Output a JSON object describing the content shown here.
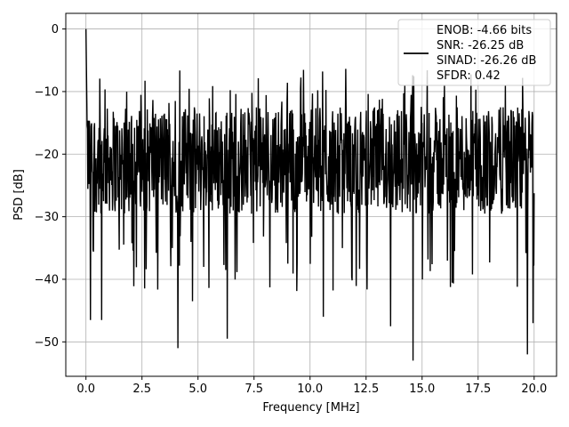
{
  "chart_data": {
    "type": "line",
    "xlabel": "Frequency [MHz]",
    "ylabel": "PSD [dB]",
    "xlim": [
      -0.9,
      21.0
    ],
    "ylim": [
      -55.5,
      2.5
    ],
    "xticks": [
      0.0,
      2.5,
      5.0,
      7.5,
      10.0,
      12.5,
      15.0,
      17.5,
      20.0
    ],
    "xtick_labels": [
      "0.0",
      "2.5",
      "5.0",
      "7.5",
      "10.0",
      "12.5",
      "15.0",
      "17.5",
      "20.0"
    ],
    "yticks": [
      0,
      -10,
      -20,
      -30,
      -40,
      -50
    ],
    "ytick_labels": [
      "0",
      "−10",
      "−20",
      "−30",
      "−40",
      "−50"
    ],
    "grid": true,
    "legend_position": "top-right",
    "series": [
      {
        "name": "ENOB: -4.66 bits\nSNR: -26.25 dB\nSINAD: -26.26 dB\nSFDR: 0.42",
        "color": "#000000",
        "x_range": [
          0.0,
          20.0
        ],
        "num_points": 1200,
        "noise_floor_typical": [
          -30,
          -12
        ],
        "peak": {
          "x": 0.0,
          "y": 0.0
        },
        "deep_nulls": [
          {
            "x": 0.2,
            "y": -46.5
          },
          {
            "x": 0.7,
            "y": -46.5
          },
          {
            "x": 4.1,
            "y": -51.0
          },
          {
            "x": 4.75,
            "y": -43.5
          },
          {
            "x": 6.3,
            "y": -49.5
          },
          {
            "x": 10.6,
            "y": -46.0
          },
          {
            "x": 13.6,
            "y": -47.5
          },
          {
            "x": 14.6,
            "y": -53.0
          },
          {
            "x": 19.7,
            "y": -52.0
          },
          {
            "x": 19.95,
            "y": -47.0
          }
        ]
      }
    ]
  }
}
